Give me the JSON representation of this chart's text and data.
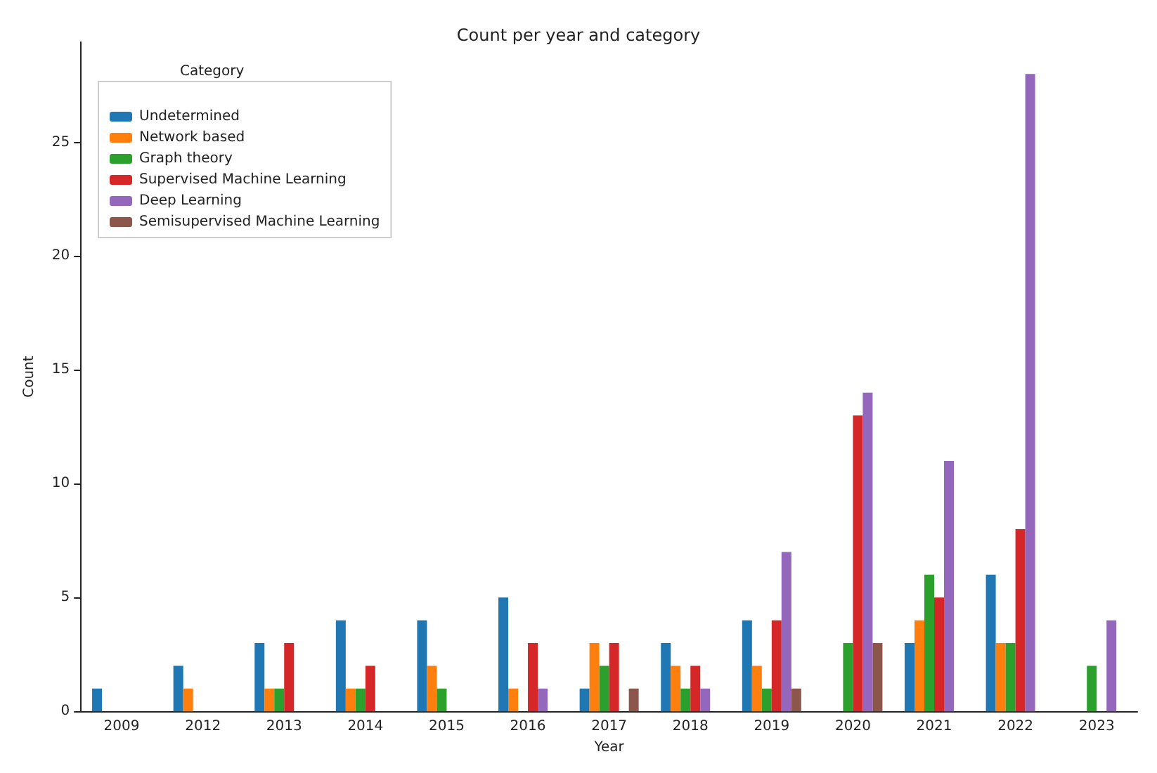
{
  "chart_data": {
    "type": "bar",
    "title": "Count per year and category",
    "xlabel": "Year",
    "ylabel": "Count",
    "legend_title": "Category",
    "legend": "top left",
    "grid": false,
    "ylim": [
      0,
      29.4
    ],
    "yticks": [
      0,
      5,
      10,
      15,
      20,
      25
    ],
    "categories": [
      "2009",
      "2012",
      "2013",
      "2014",
      "2015",
      "2016",
      "2017",
      "2018",
      "2019",
      "2020",
      "2021",
      "2022",
      "2023"
    ],
    "series": [
      {
        "name": "Undetermined",
        "color": "#1f77b4",
        "values": [
          1,
          2,
          3,
          4,
          4,
          5,
          1,
          3,
          4,
          0,
          3,
          6,
          0
        ]
      },
      {
        "name": "Network based",
        "color": "#ff7f0e",
        "values": [
          0,
          1,
          1,
          1,
          2,
          1,
          3,
          2,
          2,
          0,
          4,
          3,
          0
        ]
      },
      {
        "name": "Graph theory",
        "color": "#2ca02c",
        "values": [
          0,
          0,
          1,
          1,
          1,
          0,
          2,
          1,
          1,
          3,
          6,
          3,
          2
        ]
      },
      {
        "name": "Supervised Machine Learning",
        "color": "#d62728",
        "values": [
          0,
          0,
          3,
          2,
          0,
          3,
          3,
          2,
          4,
          13,
          5,
          8,
          0
        ]
      },
      {
        "name": "Deep Learning",
        "color": "#9467bd",
        "values": [
          0,
          0,
          0,
          0,
          0,
          1,
          0,
          1,
          7,
          14,
          11,
          28,
          4
        ]
      },
      {
        "name": "Semisupervised Machine Learning",
        "color": "#8c564b",
        "values": [
          0,
          0,
          0,
          0,
          0,
          0,
          1,
          0,
          1,
          3,
          0,
          0,
          0
        ]
      }
    ]
  }
}
